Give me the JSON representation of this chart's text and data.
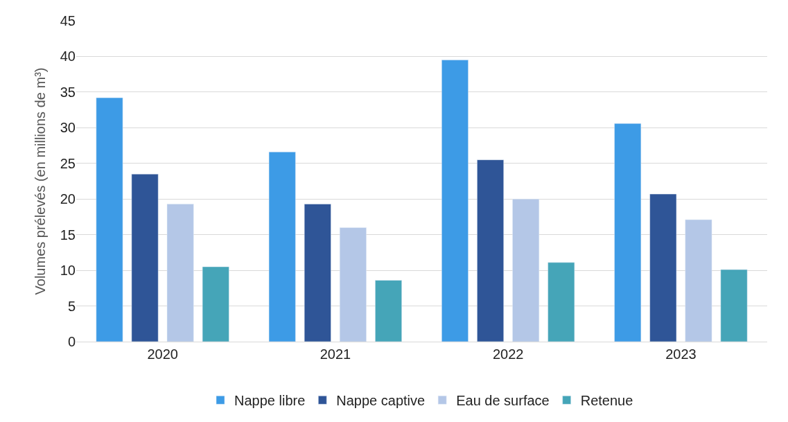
{
  "chart_data": {
    "type": "bar",
    "ylabel": "Volumes prélevés (en millions de m³)",
    "categories": [
      "2020",
      "2021",
      "2022",
      "2023"
    ],
    "series": [
      {
        "name": "Nappe libre",
        "color": "#3d9be6",
        "values": [
          34.2,
          26.6,
          39.5,
          30.6
        ]
      },
      {
        "name": "Nappe captive",
        "color": "#2f5597",
        "values": [
          23.5,
          19.3,
          25.5,
          20.7
        ]
      },
      {
        "name": "Eau de surface",
        "color": "#b4c7e7",
        "values": [
          19.3,
          16.0,
          20.0,
          17.1
        ]
      },
      {
        "name": "Retenue",
        "color": "#45a5b8",
        "values": [
          10.5,
          8.6,
          11.1,
          10.1
        ]
      }
    ],
    "ylim": [
      0,
      45
    ],
    "yticks": [
      0,
      5,
      10,
      15,
      20,
      25,
      30,
      35,
      40,
      45
    ],
    "grid": "y",
    "legend": "bottom"
  }
}
